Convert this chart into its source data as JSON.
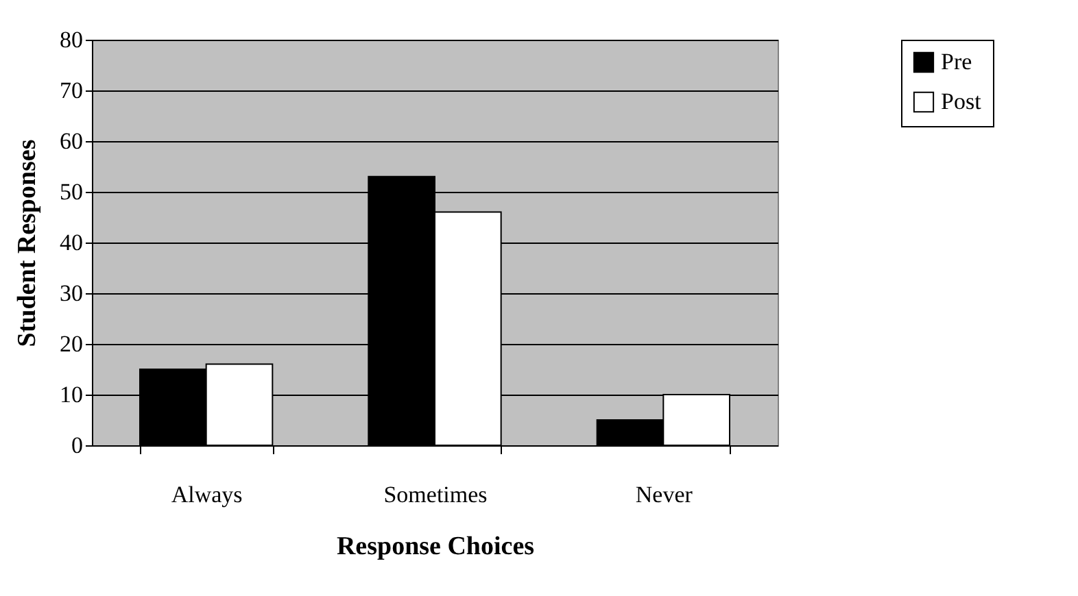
{
  "chart_data": {
    "type": "bar",
    "xlabel": "Response Choices",
    "ylabel": "Student Responses",
    "categories": [
      "Always",
      "Sometimes",
      "Never"
    ],
    "series": [
      {
        "name": "Pre",
        "color": "#000000",
        "values": [
          15,
          53,
          5
        ]
      },
      {
        "name": "Post",
        "color": "#ffffff",
        "values": [
          16,
          46,
          10
        ]
      }
    ],
    "ylim": [
      0,
      80
    ],
    "yticks": [
      0,
      10,
      20,
      30,
      40,
      50,
      60,
      70,
      80
    ],
    "grid": "y",
    "legend": "right"
  }
}
